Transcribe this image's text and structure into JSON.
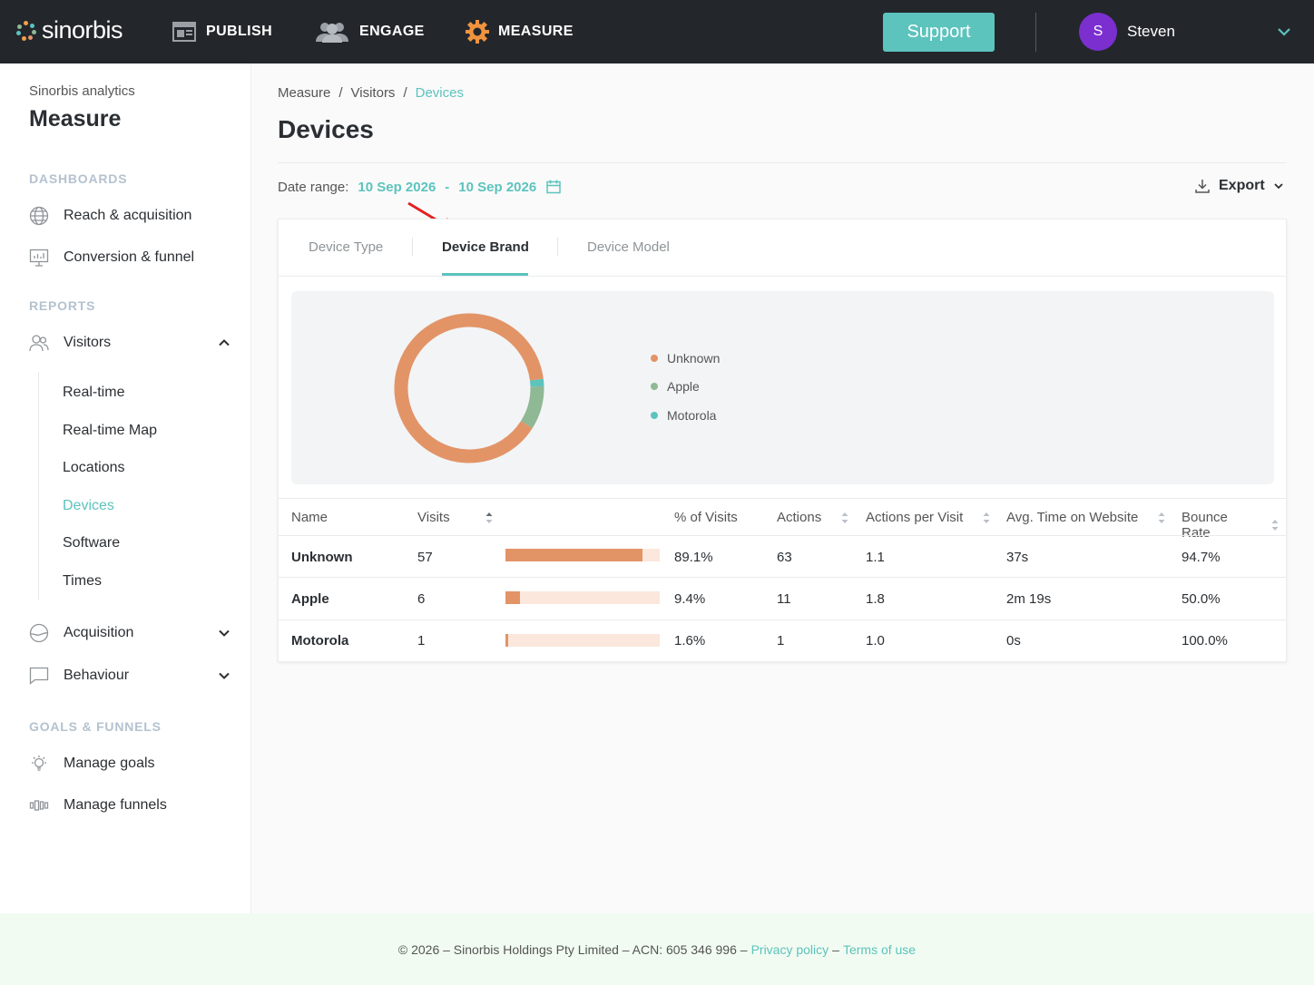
{
  "header": {
    "logo": "sinorbis",
    "nav": [
      {
        "label": "PUBLISH",
        "icon": "publish-icon"
      },
      {
        "label": "ENGAGE",
        "icon": "engage-icon"
      },
      {
        "label": "MEASURE",
        "icon": "measure-gear-icon"
      }
    ],
    "support_label": "Support",
    "user": {
      "initial": "S",
      "name": "Steven"
    }
  },
  "sidebar": {
    "subtitle": "Sinorbis analytics",
    "title": "Measure",
    "sections": {
      "dashboards": "DASHBOARDS",
      "reports": "REPORTS",
      "goals": "GOALS & FUNNELS"
    },
    "dashboards": [
      {
        "label": "Reach & acquisition",
        "icon": "globe-icon"
      },
      {
        "label": "Conversion & funnel",
        "icon": "presentation-icon"
      }
    ],
    "visitors": {
      "label": "Visitors",
      "icon": "users-icon"
    },
    "visitor_items": [
      "Real-time",
      "Real-time Map",
      "Locations",
      "Devices",
      "Software",
      "Times"
    ],
    "acquisition": {
      "label": "Acquisition",
      "icon": "acquisition-icon"
    },
    "behaviour": {
      "label": "Behaviour",
      "icon": "chat-icon"
    },
    "goals": [
      {
        "label": "Manage goals",
        "icon": "lightbulb-icon"
      },
      {
        "label": "Manage funnels",
        "icon": "funnel-icon"
      }
    ]
  },
  "breadcrumbs": [
    "Measure",
    "Visitors",
    "Devices"
  ],
  "page_title": "Devices",
  "date_range": {
    "label": "Date range:",
    "from": "10 Sep 2026",
    "separator": "-",
    "to": "10 Sep 2026"
  },
  "export_label": "Export",
  "tabs": [
    "Device Type",
    "Device Brand",
    "Device Model"
  ],
  "active_tab": "Device Brand",
  "colors": {
    "accent": "#5cc3bd",
    "unknown": "#e29467",
    "apple": "#8fb894",
    "motorola": "#5cc3bd"
  },
  "chart_data": {
    "type": "pie",
    "labels": [
      "Unknown",
      "Apple",
      "Motorola"
    ],
    "values": [
      89.1,
      9.4,
      1.6
    ],
    "legend": [
      "Unknown",
      "Apple",
      "Motorola"
    ]
  },
  "table": {
    "headers": [
      "Name",
      "Visits",
      "% of Visits",
      "Actions",
      "Actions per Visit",
      "Avg. Time on Website",
      "Bounce Rate"
    ],
    "rows": [
      {
        "name": "Unknown",
        "visits": "57",
        "share": 0.891,
        "pct": "89.1%",
        "actions": "63",
        "apv": "1.1",
        "avg_time": "37s",
        "bounce": "94.7%"
      },
      {
        "name": "Apple",
        "visits": "6",
        "share": 0.094,
        "pct": "9.4%",
        "actions": "11",
        "apv": "1.8",
        "avg_time": "2m 19s",
        "bounce": "50.0%"
      },
      {
        "name": "Motorola",
        "visits": "1",
        "share": 0.016,
        "pct": "1.6%",
        "actions": "1",
        "apv": "1.0",
        "avg_time": "0s",
        "bounce": "100.0%"
      }
    ]
  },
  "footer": {
    "text": "© 2026 – Sinorbis Holdings Pty Limited – ACN: 605 346 996 –",
    "privacy": "Privacy policy",
    "dash": "–",
    "terms": "Terms of use"
  }
}
